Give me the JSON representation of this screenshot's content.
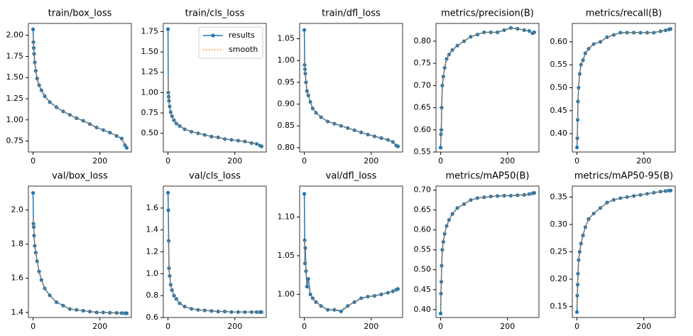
{
  "chart_data": [
    {
      "type": "line",
      "title": "train/box_loss",
      "x": [
        0,
        1,
        2,
        3,
        5,
        8,
        12,
        18,
        25,
        35,
        50,
        70,
        90,
        110,
        130,
        150,
        170,
        190,
        210,
        230,
        250,
        265,
        275,
        280
      ],
      "series": [
        {
          "color": "#1f77b4",
          "values": [
            2.07,
            1.92,
            1.85,
            1.78,
            1.68,
            1.58,
            1.49,
            1.41,
            1.35,
            1.28,
            1.21,
            1.15,
            1.1,
            1.06,
            1.02,
            0.99,
            0.95,
            0.91,
            0.88,
            0.85,
            0.81,
            0.78,
            0.7,
            0.67
          ]
        },
        {
          "color": "#ff7f0e",
          "values": [
            1.98,
            1.9,
            1.84,
            1.77,
            1.68,
            1.58,
            1.49,
            1.41,
            1.35,
            1.28,
            1.21,
            1.15,
            1.1,
            1.06,
            1.02,
            0.99,
            0.95,
            0.91,
            0.88,
            0.85,
            0.81,
            0.77,
            0.71,
            0.68
          ]
        }
      ],
      "xlim": [
        -14,
        294
      ],
      "ylim": [
        0.62,
        2.14
      ],
      "xticks": [
        0,
        200
      ],
      "yticks": [
        {
          "value": 0.75,
          "label": "0.75"
        },
        {
          "value": 1,
          "label": "1.00"
        },
        1.25,
        {
          "value": 1.5,
          "label": "1.50"
        },
        1.75,
        {
          "value": 2,
          "label": "2.00"
        }
      ]
    },
    {
      "type": "line",
      "title": "train/cls_loss",
      "legend": "upper right",
      "x": [
        0,
        1,
        2,
        3,
        5,
        8,
        12,
        18,
        25,
        35,
        50,
        70,
        90,
        110,
        130,
        150,
        170,
        190,
        210,
        230,
        250,
        265,
        275,
        280
      ],
      "series": [
        {
          "name": "results",
          "color": "#1f77b4",
          "values": [
            1.78,
            1.0,
            0.95,
            0.9,
            0.83,
            0.76,
            0.71,
            0.66,
            0.62,
            0.59,
            0.55,
            0.52,
            0.5,
            0.48,
            0.46,
            0.45,
            0.43,
            0.42,
            0.41,
            0.4,
            0.38,
            0.37,
            0.35,
            0.34
          ]
        },
        {
          "name": "smooth",
          "color": "#ff7f0e",
          "values": [
            1.2,
            1.0,
            0.95,
            0.9,
            0.83,
            0.76,
            0.71,
            0.66,
            0.62,
            0.59,
            0.55,
            0.52,
            0.5,
            0.48,
            0.46,
            0.45,
            0.43,
            0.42,
            0.41,
            0.4,
            0.38,
            0.37,
            0.355,
            0.345
          ]
        }
      ],
      "xlim": [
        -14,
        294
      ],
      "ylim": [
        0.27,
        1.85
      ],
      "xticks": [
        0,
        200
      ],
      "yticks": [
        {
          "value": 0.5,
          "label": "0.50"
        },
        0.75,
        {
          "value": 1,
          "label": "1.00"
        },
        1.25,
        {
          "value": 1.5,
          "label": "1.50"
        },
        1.75
      ]
    },
    {
      "type": "line",
      "title": "train/dfl_loss",
      "x": [
        0,
        1,
        2,
        3,
        5,
        8,
        12,
        18,
        25,
        35,
        50,
        70,
        90,
        110,
        130,
        150,
        170,
        190,
        210,
        230,
        250,
        265,
        275,
        280
      ],
      "series": [
        {
          "color": "#1f77b4",
          "values": [
            1.07,
            0.99,
            0.98,
            0.97,
            0.95,
            0.93,
            0.92,
            0.905,
            0.89,
            0.88,
            0.87,
            0.86,
            0.855,
            0.85,
            0.845,
            0.84,
            0.835,
            0.83,
            0.826,
            0.822,
            0.818,
            0.813,
            0.805,
            0.803
          ]
        },
        {
          "color": "#ff7f0e",
          "values": [
            1.0,
            0.99,
            0.98,
            0.97,
            0.95,
            0.93,
            0.92,
            0.905,
            0.89,
            0.88,
            0.87,
            0.86,
            0.855,
            0.85,
            0.845,
            0.84,
            0.835,
            0.83,
            0.826,
            0.822,
            0.818,
            0.812,
            0.806,
            0.804
          ]
        }
      ],
      "xlim": [
        -14,
        294
      ],
      "ylim": [
        0.79,
        1.085
      ],
      "xticks": [
        0,
        200
      ],
      "yticks": [
        {
          "value": 0.8,
          "label": "0.80"
        },
        0.85,
        {
          "value": 0.9,
          "label": "0.90"
        },
        0.95,
        {
          "value": 1,
          "label": "1.00"
        },
        1.05
      ]
    },
    {
      "type": "line",
      "title": "metrics/precision(B)",
      "x": [
        0,
        1,
        2,
        3,
        5,
        8,
        12,
        18,
        25,
        35,
        50,
        70,
        90,
        110,
        130,
        150,
        170,
        190,
        210,
        230,
        250,
        265,
        275,
        280
      ],
      "series": [
        {
          "color": "#1f77b4",
          "values": [
            0.56,
            0.59,
            0.6,
            0.65,
            0.7,
            0.72,
            0.74,
            0.76,
            0.77,
            0.78,
            0.79,
            0.8,
            0.81,
            0.815,
            0.82,
            0.82,
            0.82,
            0.825,
            0.83,
            0.828,
            0.825,
            0.823,
            0.818,
            0.82
          ]
        },
        {
          "color": "#ff7f0e",
          "values": [
            0.57,
            0.58,
            0.6,
            0.64,
            0.69,
            0.72,
            0.74,
            0.76,
            0.77,
            0.78,
            0.79,
            0.8,
            0.81,
            0.815,
            0.82,
            0.82,
            0.82,
            0.825,
            0.829,
            0.828,
            0.825,
            0.822,
            0.819,
            0.82
          ]
        }
      ],
      "xlim": [
        -14,
        294
      ],
      "ylim": [
        0.55,
        0.84
      ],
      "xticks": [
        0,
        200
      ],
      "yticks": [
        0.55,
        {
          "value": 0.6,
          "label": "0.60"
        },
        0.65,
        {
          "value": 0.7,
          "label": "0.70"
        },
        0.75,
        {
          "value": 0.8,
          "label": "0.80"
        }
      ]
    },
    {
      "type": "line",
      "title": "metrics/recall(B)",
      "x": [
        0,
        1,
        2,
        3,
        5,
        8,
        12,
        18,
        25,
        35,
        50,
        70,
        90,
        110,
        130,
        150,
        170,
        190,
        210,
        230,
        250,
        265,
        275,
        280
      ],
      "series": [
        {
          "color": "#1f77b4",
          "values": [
            0.37,
            0.39,
            0.43,
            0.47,
            0.5,
            0.53,
            0.55,
            0.56,
            0.575,
            0.585,
            0.595,
            0.6,
            0.61,
            0.615,
            0.62,
            0.62,
            0.62,
            0.62,
            0.62,
            0.62,
            0.623,
            0.625,
            0.627,
            0.628
          ]
        },
        {
          "color": "#ff7f0e",
          "values": [
            0.38,
            0.4,
            0.43,
            0.46,
            0.5,
            0.53,
            0.55,
            0.56,
            0.575,
            0.585,
            0.595,
            0.6,
            0.61,
            0.615,
            0.619,
            0.62,
            0.62,
            0.62,
            0.62,
            0.621,
            0.623,
            0.625,
            0.627,
            0.628
          ]
        }
      ],
      "xlim": [
        -14,
        294
      ],
      "ylim": [
        0.36,
        0.64
      ],
      "xticks": [
        0,
        200
      ],
      "yticks": [
        {
          "value": 0.4,
          "label": "0.40"
        },
        0.45,
        {
          "value": 0.5,
          "label": "0.50"
        },
        0.55,
        {
          "value": 0.6,
          "label": "0.60"
        }
      ]
    },
    {
      "type": "line",
      "title": "val/box_loss",
      "x": [
        0,
        1,
        2,
        3,
        5,
        8,
        12,
        18,
        25,
        35,
        50,
        70,
        90,
        110,
        130,
        150,
        170,
        190,
        210,
        230,
        250,
        265,
        275,
        280
      ],
      "series": [
        {
          "color": "#1f77b4",
          "values": [
            2.1,
            1.92,
            1.9,
            1.85,
            1.79,
            1.75,
            1.7,
            1.64,
            1.59,
            1.54,
            1.5,
            1.46,
            1.44,
            1.42,
            1.415,
            1.41,
            1.405,
            1.4,
            1.4,
            1.398,
            1.397,
            1.396,
            1.395,
            1.395
          ]
        },
        {
          "color": "#ff7f0e",
          "values": [
            1.95,
            1.93,
            1.9,
            1.85,
            1.8,
            1.75,
            1.7,
            1.64,
            1.59,
            1.54,
            1.5,
            1.46,
            1.44,
            1.42,
            1.415,
            1.41,
            1.405,
            1.4,
            1.4,
            1.398,
            1.397,
            1.396,
            1.395,
            1.395
          ]
        }
      ],
      "xlim": [
        -14,
        294
      ],
      "ylim": [
        1.37,
        2.14
      ],
      "xticks": [
        0,
        200
      ],
      "yticks": [
        1.4,
        1.6,
        1.8,
        {
          "value": 2,
          "label": "2.0"
        }
      ]
    },
    {
      "type": "line",
      "title": "val/cls_loss",
      "x": [
        0,
        1,
        2,
        3,
        5,
        8,
        12,
        18,
        25,
        35,
        50,
        70,
        90,
        110,
        130,
        150,
        170,
        190,
        210,
        230,
        250,
        265,
        275,
        280
      ],
      "series": [
        {
          "color": "#1f77b4",
          "values": [
            1.74,
            1.58,
            1.3,
            1.05,
            0.98,
            0.9,
            0.85,
            0.8,
            0.77,
            0.73,
            0.7,
            0.68,
            0.67,
            0.665,
            0.66,
            0.655,
            0.655,
            0.65,
            0.65,
            0.65,
            0.65,
            0.65,
            0.65,
            0.65
          ]
        },
        {
          "color": "#ff7f0e",
          "values": [
            1.35,
            1.3,
            1.22,
            1.08,
            0.98,
            0.9,
            0.85,
            0.8,
            0.77,
            0.73,
            0.7,
            0.68,
            0.67,
            0.665,
            0.66,
            0.655,
            0.655,
            0.65,
            0.65,
            0.65,
            0.65,
            0.65,
            0.65,
            0.65
          ]
        }
      ],
      "xlim": [
        -14,
        294
      ],
      "ylim": [
        0.6,
        1.8
      ],
      "xticks": [
        0,
        200
      ],
      "yticks": [
        0.6,
        0.8,
        {
          "value": 1,
          "label": "1.0"
        },
        1.2,
        1.4,
        1.6
      ]
    },
    {
      "type": "line",
      "title": "val/dfl_loss",
      "x": [
        0,
        1,
        2,
        3,
        5,
        8,
        12,
        18,
        25,
        35,
        50,
        70,
        90,
        110,
        130,
        150,
        170,
        190,
        210,
        230,
        250,
        265,
        275,
        280
      ],
      "series": [
        {
          "color": "#1f77b4",
          "values": [
            1.13,
            1.07,
            1.04,
            1.06,
            1.03,
            1.01,
            1.02,
            1.0,
            0.995,
            0.99,
            0.985,
            0.98,
            0.98,
            0.978,
            0.985,
            0.99,
            0.995,
            0.997,
            0.998,
            1.0,
            1.002,
            1.004,
            1.006,
            1.007
          ]
        },
        {
          "color": "#ff7f0e",
          "values": [
            1.07,
            1.06,
            1.05,
            1.05,
            1.03,
            1.02,
            1.01,
            1.0,
            0.995,
            0.99,
            0.985,
            0.981,
            0.98,
            0.98,
            0.985,
            0.99,
            0.994,
            0.997,
            0.998,
            1.0,
            1.002,
            1.004,
            1.006,
            1.007
          ]
        }
      ],
      "xlim": [
        -14,
        294
      ],
      "ylim": [
        0.97,
        1.14
      ],
      "xticks": [
        0,
        200
      ],
      "yticks": [
        {
          "value": 1,
          "label": "1.00"
        },
        1.05,
        {
          "value": 1.1,
          "label": "1.10"
        }
      ]
    },
    {
      "type": "line",
      "title": "metrics/mAP50(B)",
      "x": [
        0,
        1,
        2,
        3,
        5,
        8,
        12,
        18,
        25,
        35,
        50,
        70,
        90,
        110,
        130,
        150,
        170,
        190,
        210,
        230,
        250,
        265,
        275,
        280
      ],
      "series": [
        {
          "color": "#1f77b4",
          "values": [
            0.39,
            0.44,
            0.47,
            0.51,
            0.55,
            0.57,
            0.59,
            0.61,
            0.625,
            0.64,
            0.655,
            0.665,
            0.675,
            0.68,
            0.682,
            0.684,
            0.685,
            0.686,
            0.686,
            0.687,
            0.688,
            0.69,
            0.692,
            0.693
          ]
        },
        {
          "color": "#ff7f0e",
          "values": [
            0.4,
            0.43,
            0.47,
            0.5,
            0.54,
            0.57,
            0.59,
            0.61,
            0.625,
            0.64,
            0.655,
            0.665,
            0.675,
            0.68,
            0.682,
            0.684,
            0.685,
            0.686,
            0.686,
            0.687,
            0.688,
            0.69,
            0.692,
            0.693
          ]
        }
      ],
      "xlim": [
        -14,
        294
      ],
      "ylim": [
        0.38,
        0.71
      ],
      "xticks": [
        0,
        200
      ],
      "yticks": [
        {
          "value": 0.4,
          "label": "0.40"
        },
        0.45,
        {
          "value": 0.5,
          "label": "0.50"
        },
        0.55,
        {
          "value": 0.6,
          "label": "0.60"
        },
        0.65,
        {
          "value": 0.7,
          "label": "0.70"
        }
      ]
    },
    {
      "type": "line",
      "title": "metrics/mAP50-95(B)",
      "x": [
        0,
        1,
        2,
        3,
        5,
        8,
        12,
        18,
        25,
        35,
        50,
        70,
        90,
        110,
        130,
        150,
        170,
        190,
        210,
        230,
        250,
        265,
        275,
        280
      ],
      "series": [
        {
          "color": "#1f77b4",
          "values": [
            0.14,
            0.17,
            0.19,
            0.21,
            0.235,
            0.25,
            0.265,
            0.28,
            0.295,
            0.31,
            0.32,
            0.33,
            0.34,
            0.345,
            0.348,
            0.35,
            0.352,
            0.354,
            0.356,
            0.358,
            0.36,
            0.361,
            0.362,
            0.362
          ]
        },
        {
          "color": "#ff7f0e",
          "values": [
            0.15,
            0.16,
            0.19,
            0.21,
            0.23,
            0.25,
            0.265,
            0.28,
            0.295,
            0.31,
            0.32,
            0.33,
            0.34,
            0.345,
            0.348,
            0.35,
            0.352,
            0.354,
            0.356,
            0.358,
            0.36,
            0.361,
            0.362,
            0.362
          ]
        }
      ],
      "xlim": [
        -14,
        294
      ],
      "ylim": [
        0.13,
        0.37
      ],
      "xticks": [
        0,
        200
      ],
      "yticks": [
        0.15,
        {
          "value": 0.2,
          "label": "0.20"
        },
        0.25,
        {
          "value": 0.3,
          "label": "0.30"
        },
        0.35
      ]
    }
  ]
}
